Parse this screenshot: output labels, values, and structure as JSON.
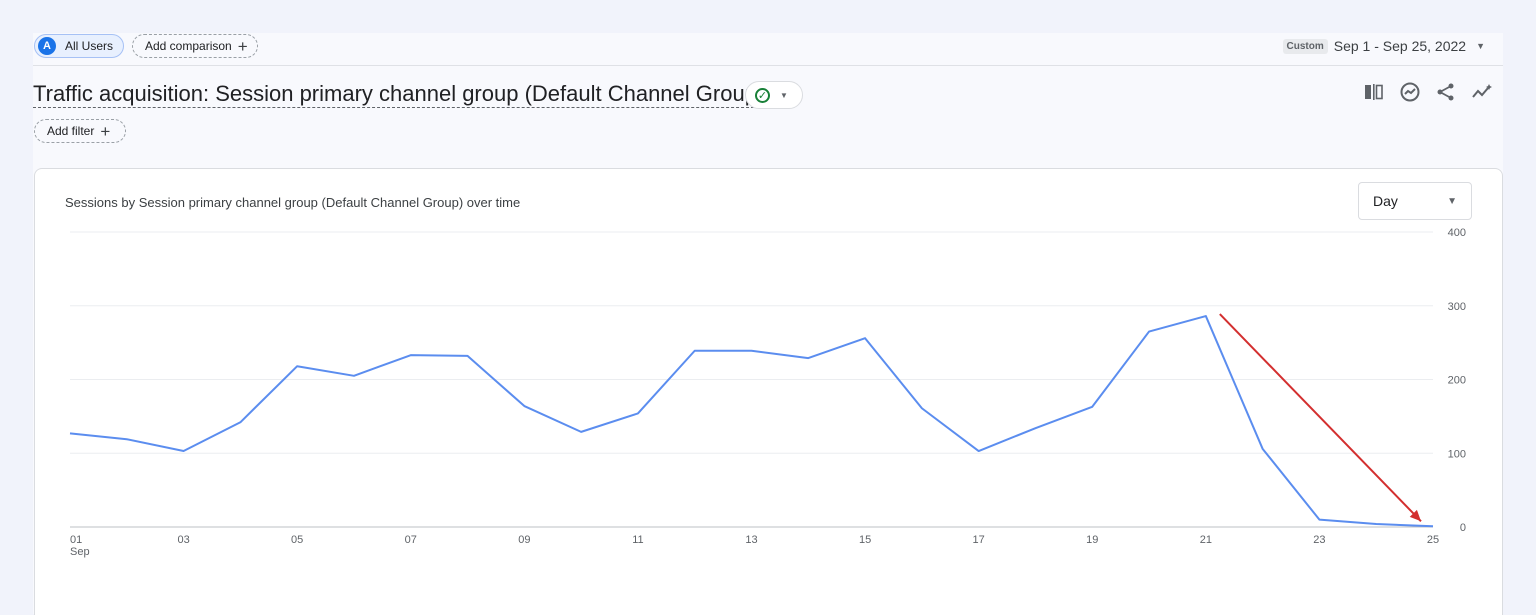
{
  "comparison_bar": {
    "segment_badge": "A",
    "segment_label": "All Users",
    "add_comparison_label": "Add comparison",
    "date_tag": "Custom",
    "date_range": "Sep 1 - Sep 25, 2022"
  },
  "report": {
    "title": "Traffic acquisition: Session primary channel group (Default Channel Group)",
    "add_filter_label": "Add filter",
    "toolbar_icons": [
      "compare-columns-icon",
      "insights-icon",
      "share-icon",
      "trend-icon"
    ]
  },
  "card": {
    "title": "Sessions by Session primary channel group (Default Channel Group) over time",
    "granularity_selected": "Day"
  },
  "chart_data": {
    "type": "line",
    "x": [
      "01",
      "02",
      "03",
      "04",
      "05",
      "06",
      "07",
      "08",
      "09",
      "10",
      "11",
      "12",
      "13",
      "14",
      "15",
      "16",
      "17",
      "18",
      "19",
      "20",
      "21",
      "22",
      "23",
      "24",
      "25"
    ],
    "x_tick_labels": [
      "01",
      "03",
      "05",
      "07",
      "09",
      "11",
      "13",
      "15",
      "17",
      "19",
      "21",
      "23",
      "25"
    ],
    "x_sublabel": "Sep",
    "series": [
      {
        "values": [
          127,
          119,
          103,
          142,
          218,
          205,
          233,
          232,
          164,
          129,
          154,
          239,
          239,
          229,
          256,
          161,
          103,
          134,
          163,
          265,
          286,
          106,
          10,
          4,
          1
        ],
        "color": "#5b8def"
      }
    ],
    "yticks": [
      0,
      100,
      200,
      300,
      400
    ],
    "ylim": [
      0,
      400
    ],
    "grid": true,
    "annotation": {
      "type": "arrow",
      "from_x": "21",
      "to_x": "25",
      "color": "#d32f2f"
    }
  }
}
